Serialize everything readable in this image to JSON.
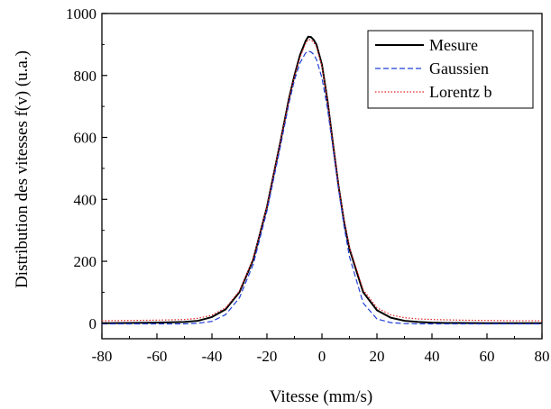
{
  "chart_data": {
    "type": "line",
    "title": "",
    "xlabel": "Vitesse (mm/s)",
    "ylabel": "Distribution des vitesses f(v) (u.a.)",
    "xlim": [
      -80,
      80
    ],
    "ylim": [
      -50,
      1000
    ],
    "xticks": [
      -80,
      -60,
      -40,
      -20,
      0,
      20,
      40,
      60,
      80
    ],
    "yticks": [
      0,
      200,
      400,
      600,
      800,
      1000
    ],
    "grid": false,
    "legend": "top-right",
    "x": [
      -80,
      -70,
      -60,
      -50,
      -45,
      -40,
      -35,
      -30,
      -25,
      -20,
      -15,
      -12,
      -10,
      -8,
      -6,
      -5,
      -4,
      -3,
      -2,
      0,
      2,
      4,
      6,
      8,
      10,
      15,
      20,
      25,
      30,
      35,
      40,
      45,
      50,
      60,
      70,
      80
    ],
    "series": [
      {
        "name": "Mesure",
        "color": "#000000",
        "dash": "solid",
        "values": [
          0,
          1,
          2,
          4,
          8,
          20,
          45,
          100,
          205,
          375,
          590,
          725,
          800,
          865,
          910,
          925,
          924,
          915,
          900,
          835,
          720,
          580,
          445,
          330,
          240,
          100,
          42,
          18,
          8,
          4,
          2,
          1,
          1,
          0,
          0,
          0
        ]
      },
      {
        "name": "Gaussien",
        "color": "#1f3fd6",
        "dash": "dashed",
        "values": [
          -2,
          -2,
          -2,
          -2,
          0,
          6,
          28,
          82,
          190,
          362,
          575,
          710,
          785,
          840,
          872,
          878,
          876,
          868,
          852,
          792,
          695,
          565,
          435,
          315,
          215,
          65,
          14,
          2,
          -1,
          -2,
          -2,
          -2,
          -2,
          -2,
          -2,
          -2
        ]
      },
      {
        "name": "Lorentz b",
        "color": "#e02020",
        "dash": "dotted",
        "values": [
          8,
          9,
          10,
          12,
          16,
          26,
          50,
          104,
          208,
          376,
          590,
          722,
          797,
          858,
          902,
          916,
          915,
          907,
          893,
          830,
          718,
          580,
          448,
          335,
          246,
          108,
          50,
          27,
          18,
          14,
          12,
          11,
          10,
          9,
          8,
          8
        ]
      }
    ]
  }
}
